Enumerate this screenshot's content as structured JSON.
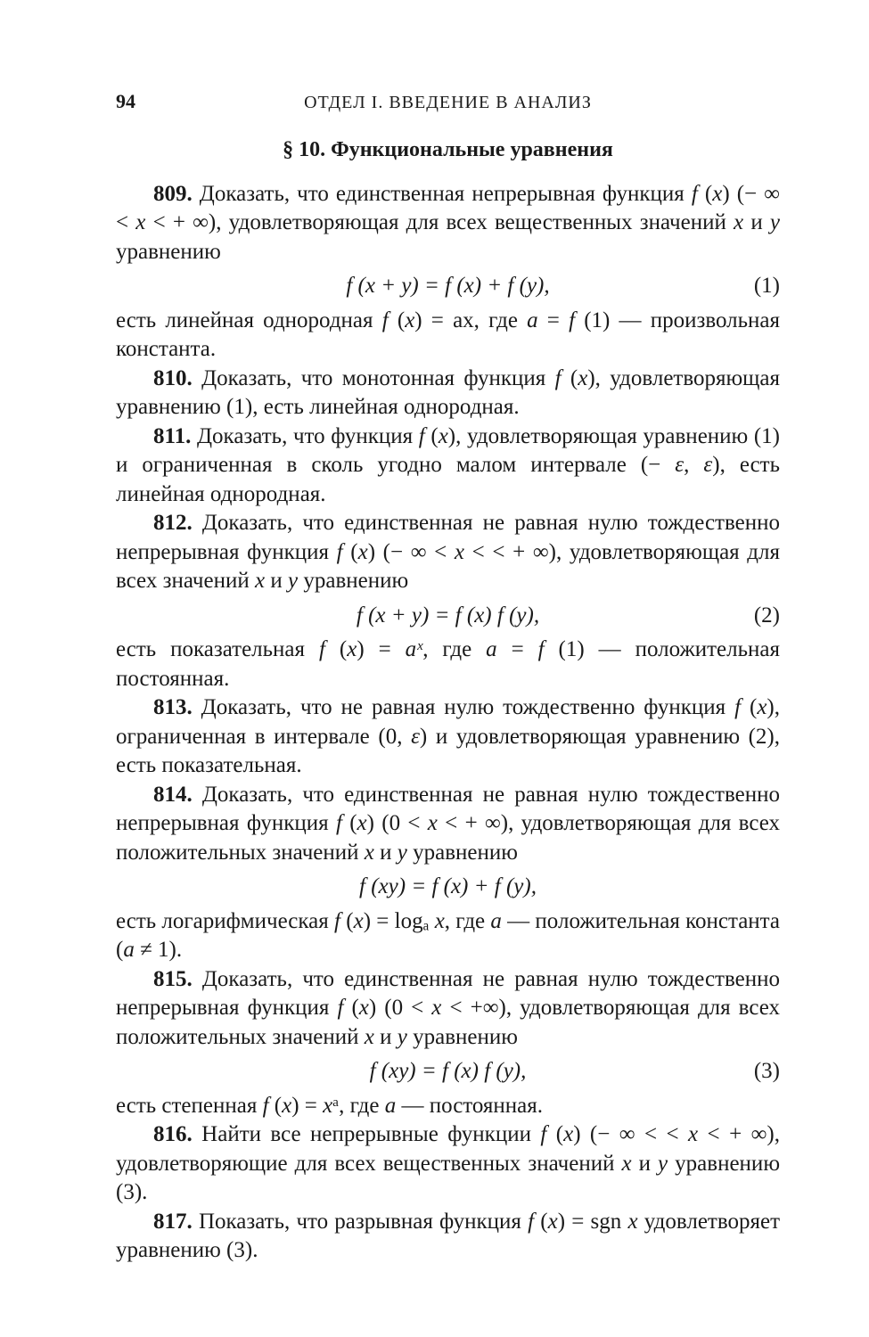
{
  "page_number": "94",
  "running_head": "ОТДЕЛ I. ВВЕДЕНИЕ В АНАЛИЗ",
  "section_title": "§ 10. Функциональные уравнения",
  "p809a": "809. Доказать, что единственная непрерывная функ­ция f (x) (− ∞ < x < + ∞), удовлетворяющая для всех вещественных значений x и y уравнению",
  "eq1": "f (x + y) = f (x) + f (y),",
  "eq1_num": "(1)",
  "p809b": "есть линейная однородная f (x) = ax, где a = f (1) — произвольная константа.",
  "p810": "810. Доказать, что монотонная функция f (x), удов­летворяющая уравнению (1), есть линейная однородная.",
  "p811": "811. Доказать, что функция f (x), удовлетворяющая уравнению (1) и ограниченная в сколь угодно малом интервале (− ε, ε), есть линейная однородная.",
  "p812a": "812. Доказать, что единственная не равная нулю тождественно непрерывная функция f (x) (− ∞ < x < < + ∞), удовлетворяющая для всех значений x и y уравнению",
  "eq2": "f (x + y) = f (x) f (y),",
  "eq2_num": "(2)",
  "p812b": "есть показательная f (x) = aˣ, где a = f (1) — положи­тельная постоянная.",
  "p813": "813. Доказать, что не равная нулю тождественно функция f (x), ограниченная в интервале (0, ε) и удов­летворяющая уравнению (2), есть показательная.",
  "p814a": "814. Доказать, что единственная не равная нулю тождественно непрерывная функция f (x) (0 < x < + ∞), удовлетворяющая для всех положительных значений x и y уравнению",
  "eq814": "f (xy) = f (x) + f (y),",
  "p814b": "есть логарифмическая f (x) = logₐ x, где a — положи­тельная константа (a ≠ 1).",
  "p815a": "815. Доказать, что единственная не равная нулю тождественно непрерывная функция f (x) (0 < x < +∞), удовлетворяющая для всех положительных значений x и y уравнению",
  "eq3": "f (xy) = f (x) f (y),",
  "eq3_num": "(3)",
  "p815b": "есть степенная f (x) = xᵃ, где a — постоянная.",
  "p816": "816. Найти все непрерывные функции f (x) (− ∞ < < x < + ∞), удовлетворяющие для всех веществен­ных значений x и y уравнению (3).",
  "p817": "817. Показать, что разрывная функция f (x) = sgn x удовлетворяет уравнению (3)."
}
